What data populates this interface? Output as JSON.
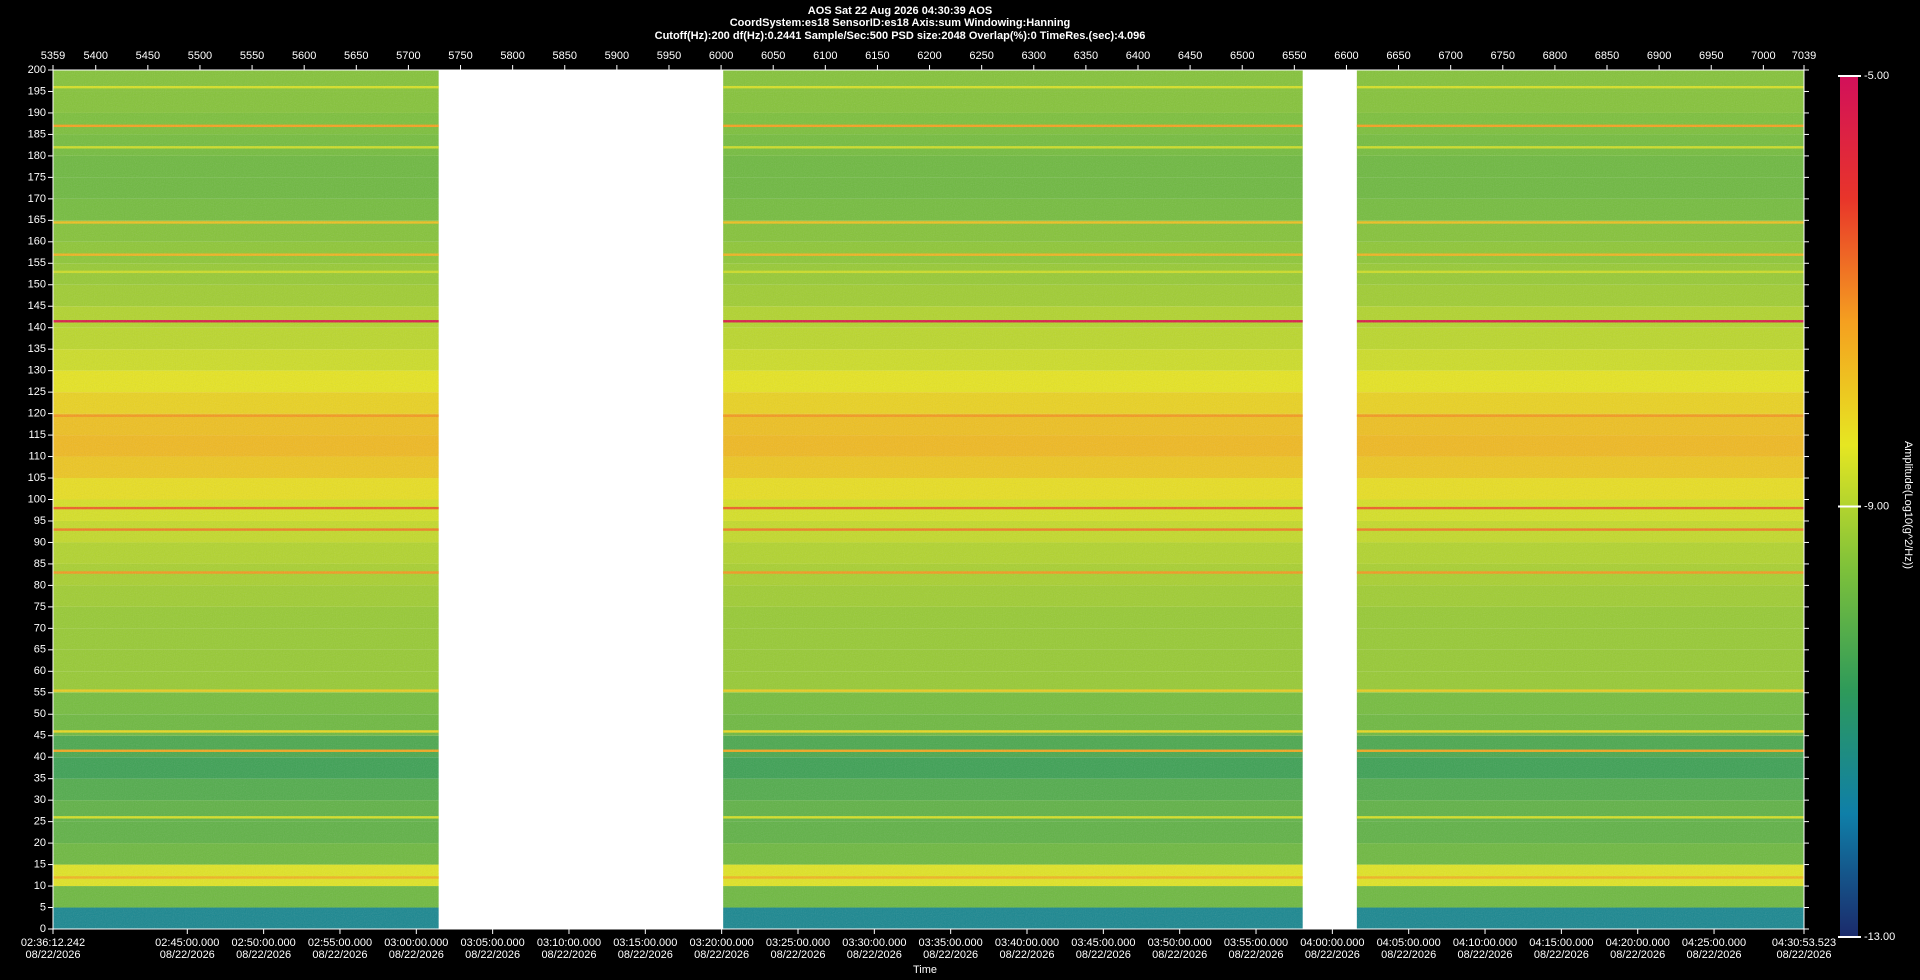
{
  "chart_data": {
    "type": "spectrogram",
    "title": "AOS  Sat 22 Aug 2026 04:30:39  AOS",
    "subtitle": "CoordSystem:es18    SensorID:es18     Axis:sum     Windowing:Hanning",
    "settings_line": "Cutoff(Hz):200      df(Hz):0.2441      Sample/Sec:500      PSD size:2048       Overlap(%):0        TimeRes.(sec):4.096",
    "x_label": "Time",
    "colorbar_label": "Amplitude(Log10(g^2/Hz))",
    "xlim": [
      5359,
      7039
    ],
    "xticks": [
      5359,
      5400,
      5450,
      5500,
      5550,
      5600,
      5650,
      5700,
      5750,
      5800,
      5850,
      5900,
      5950,
      6000,
      6050,
      6100,
      6150,
      6200,
      6250,
      6300,
      6350,
      6400,
      6450,
      6500,
      6550,
      6600,
      6650,
      6700,
      6750,
      6800,
      6850,
      6900,
      6950,
      7000,
      7039
    ],
    "x2lim": [
      9372.242,
      16253.523
    ],
    "x2ticks": [
      {
        "value": 9372.242,
        "label": "02:36:12.242",
        "date": "08/22/2026"
      },
      {
        "value": 9900,
        "label": "02:45:00.000",
        "date": "08/22/2026"
      },
      {
        "value": 10200,
        "label": "02:50:00.000",
        "date": "08/22/2026"
      },
      {
        "value": 10500,
        "label": "02:55:00.000",
        "date": "08/22/2026"
      },
      {
        "value": 10800,
        "label": "03:00:00.000",
        "date": "08/22/2026"
      },
      {
        "value": 11100,
        "label": "03:05:00.000",
        "date": "08/22/2026"
      },
      {
        "value": 11400,
        "label": "03:10:00.000",
        "date": "08/22/2026"
      },
      {
        "value": 11700,
        "label": "03:15:00.000",
        "date": "08/22/2026"
      },
      {
        "value": 12000,
        "label": "03:20:00.000",
        "date": "08/22/2026"
      },
      {
        "value": 12300,
        "label": "03:25:00.000",
        "date": "08/22/2026"
      },
      {
        "value": 12600,
        "label": "03:30:00.000",
        "date": "08/22/2026"
      },
      {
        "value": 12900,
        "label": "03:35:00.000",
        "date": "08/22/2026"
      },
      {
        "value": 13200,
        "label": "03:40:00.000",
        "date": "08/22/2026"
      },
      {
        "value": 13500,
        "label": "03:45:00.000",
        "date": "08/22/2026"
      },
      {
        "value": 13800,
        "label": "03:50:00.000",
        "date": "08/22/2026"
      },
      {
        "value": 14100,
        "label": "03:55:00.000",
        "date": "08/22/2026"
      },
      {
        "value": 14400,
        "label": "04:00:00.000",
        "date": "08/22/2026"
      },
      {
        "value": 14700,
        "label": "04:05:00.000",
        "date": "08/22/2026"
      },
      {
        "value": 15000,
        "label": "04:10:00.000",
        "date": "08/22/2026"
      },
      {
        "value": 15300,
        "label": "04:15:00.000",
        "date": "08/22/2026"
      },
      {
        "value": 15600,
        "label": "04:20:00.000",
        "date": "08/22/2026"
      },
      {
        "value": 15900,
        "label": "04:25:00.000",
        "date": "08/22/2026"
      },
      {
        "value": 16253.523,
        "label": "04:30:53.523",
        "date": "08/22/2026"
      }
    ],
    "ylim": [
      0,
      200
    ],
    "yticks": [
      0,
      5,
      10,
      15,
      20,
      25,
      30,
      35,
      40,
      45,
      50,
      55,
      60,
      65,
      70,
      75,
      80,
      85,
      90,
      95,
      100,
      105,
      110,
      115,
      120,
      125,
      130,
      135,
      140,
      145,
      150,
      155,
      160,
      165,
      170,
      175,
      180,
      185,
      190,
      195,
      200
    ],
    "clim": [
      -13,
      -5
    ],
    "cticks": [
      {
        "value": -5,
        "label": "-5.00"
      },
      {
        "value": -9,
        "label": "-9.00"
      },
      {
        "value": -13,
        "label": "-13.00"
      }
    ],
    "colormap": [
      "#1b2a6b",
      "#0f7fa8",
      "#2e9a5a",
      "#7ec13a",
      "#e6e622",
      "#f5a020",
      "#e8352a",
      "#d2105a"
    ],
    "segments": [
      [
        5359,
        5729
      ],
      [
        6002,
        6558
      ],
      [
        6610,
        7039
      ]
    ],
    "freq_bins": [
      0,
      5,
      10,
      15,
      20,
      25,
      30,
      35,
      40,
      45,
      50,
      55,
      60,
      65,
      70,
      75,
      80,
      85,
      90,
      95,
      100,
      105,
      110,
      115,
      120,
      125,
      130,
      135,
      140,
      145,
      150,
      155,
      160,
      165,
      170,
      175,
      180,
      185,
      190,
      195,
      200
    ],
    "amplitude": [
      -11.5,
      -9.8,
      -8.5,
      -9.8,
      -10,
      -10,
      -10.2,
      -10.5,
      -10.3,
      -9.8,
      -9.7,
      -9.3,
      -9.3,
      -9.3,
      -9.3,
      -9.2,
      -9.1,
      -9.0,
      -8.8,
      -8.6,
      -8.3,
      -7.9,
      -7.7,
      -7.8,
      -8.1,
      -8.4,
      -8.7,
      -8.9,
      -9.0,
      -9.2,
      -9.3,
      -9.4,
      -9.5,
      -9.7,
      -9.8,
      -9.8,
      -9.7,
      -9.6,
      -9.5,
      -9.5
    ],
    "lines": [
      {
        "freq": 141.5,
        "value": -5.4
      },
      {
        "freq": 98,
        "value": -6.6
      },
      {
        "freq": 93,
        "value": -6.9
      },
      {
        "freq": 119.5,
        "value": -7.2
      },
      {
        "freq": 187,
        "value": -7.3
      },
      {
        "freq": 157,
        "value": -7.6
      },
      {
        "freq": 164.5,
        "value": -7.8
      },
      {
        "freq": 55.5,
        "value": -8.0
      },
      {
        "freq": 46,
        "value": -8.2
      },
      {
        "freq": 26,
        "value": -8.6
      },
      {
        "freq": 12,
        "value": -7.6
      },
      {
        "freq": 196,
        "value": -8.6
      },
      {
        "freq": 182,
        "value": -8.7
      },
      {
        "freq": 153,
        "value": -8.7
      },
      {
        "freq": 83,
        "value": -7.2
      },
      {
        "freq": 41.5,
        "value": -7.4
      }
    ]
  }
}
